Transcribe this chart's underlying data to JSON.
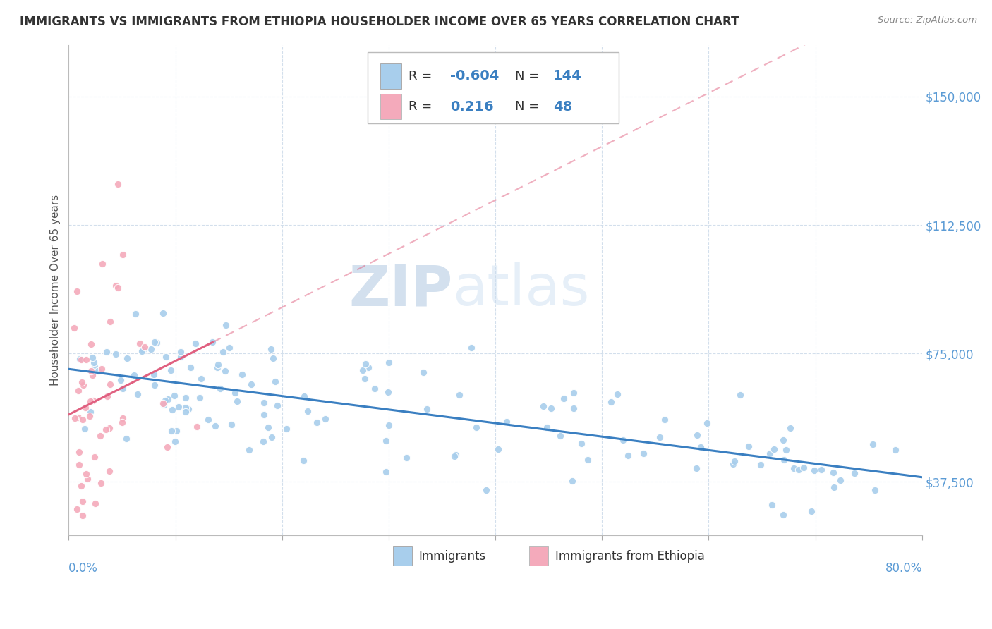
{
  "title": "IMMIGRANTS VS IMMIGRANTS FROM ETHIOPIA HOUSEHOLDER INCOME OVER 65 YEARS CORRELATION CHART",
  "source": "Source: ZipAtlas.com",
  "ylabel": "Householder Income Over 65 years",
  "xlim": [
    0.0,
    0.8
  ],
  "ylim": [
    22000,
    165000
  ],
  "yticks": [
    37500,
    75000,
    112500,
    150000
  ],
  "ytick_labels": [
    "$37,500",
    "$75,000",
    "$112,500",
    "$150,000"
  ],
  "series1_label": "Immigrants",
  "series2_label": "Immigrants from Ethiopia",
  "R1": -0.604,
  "N1": 144,
  "R2": 0.216,
  "N2": 48,
  "color1": "#A8CEEC",
  "color2": "#F4AABB",
  "trend1_color": "#3A7FC1",
  "trend2_color": "#E06080",
  "watermark_zip": "ZIP",
  "watermark_atlas": "atlas",
  "title_color": "#333333",
  "title_fontsize": 12,
  "axis_label_color": "#5B9BD5",
  "legend_R_color": "#333333",
  "legend_val_color": "#3A7FC1"
}
